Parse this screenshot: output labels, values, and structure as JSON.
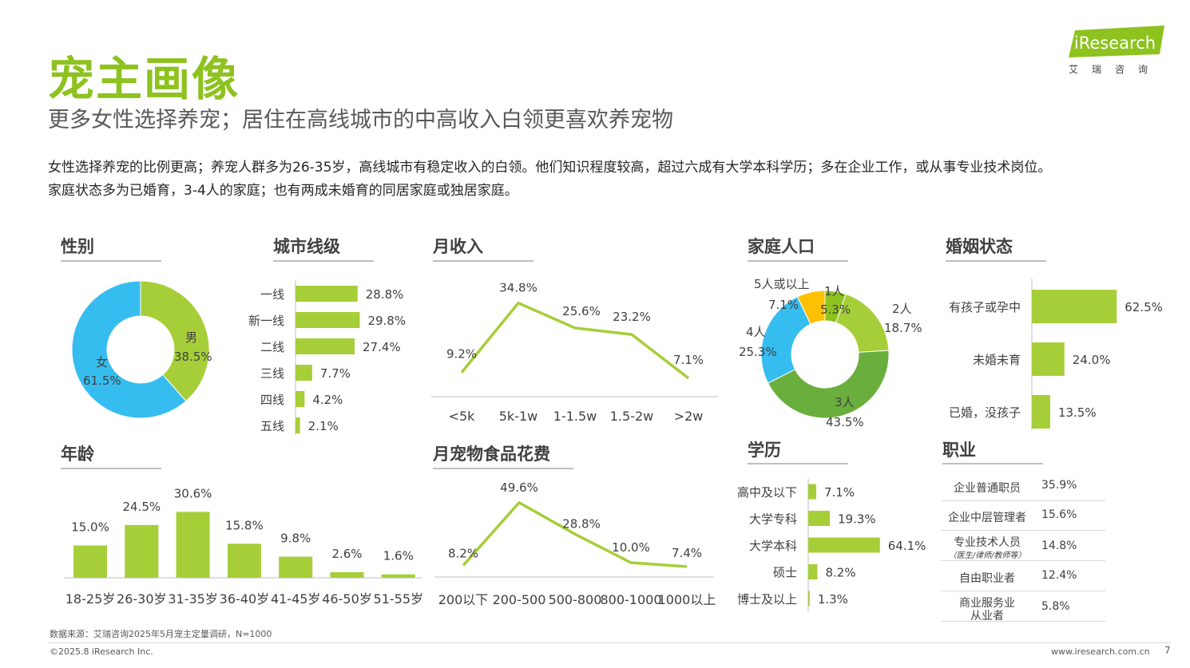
{
  "header": {
    "title": "宠主画像",
    "subtitle": "更多女性选择养宠；居住在高线城市的中高收入白领更喜欢养宠物",
    "desc1": "女性选择养宠的比例更高；养宠人群多为26-35岁，高线城市有稳定收入的白领。他们知识程度较高，超过六成有大学本科学历；多在企业工作，或从事专业技术岗位。",
    "desc2": "家庭状态多为已婚育，3-4人的家庭；也有两成未婚育的同居家庭或独居家庭。"
  },
  "logo": {
    "brand": "iResearch",
    "cn": "艾瑞咨询"
  },
  "colors": {
    "green": "#8DC21F",
    "lightgreen": "#A6CE39",
    "darkgreen": "#6AAE3E",
    "blue": "#36BDEF",
    "yellow": "#FFC000"
  },
  "footer": {
    "source": "数据来源：艾瑞咨询2025年5月宠主定量调研，N=1000",
    "copyright": "©2025.8 iResearch Inc.",
    "url": "www.iresearch.com.cn",
    "page": "7"
  },
  "sections": {
    "gender": "性别",
    "city": "城市线级",
    "income": "月收入",
    "family": "家庭人口",
    "marriage": "婚姻状态",
    "age": "年龄",
    "food": "月宠物食品花费",
    "edu": "学历",
    "job": "职业"
  },
  "chart_data": [
    {
      "id": "gender",
      "type": "pie",
      "donut": true,
      "slices": [
        {
          "label": "男",
          "value": 38.5,
          "text": "38.5%"
        },
        {
          "label": "女",
          "value": 61.5,
          "text": "61.5%"
        }
      ]
    },
    {
      "id": "city",
      "type": "bar",
      "orientation": "horizontal",
      "categories": [
        "一线",
        "新一线",
        "二线",
        "三线",
        "四线",
        "五线"
      ],
      "values": [
        28.8,
        29.8,
        27.4,
        7.7,
        4.2,
        2.1
      ],
      "labels": [
        "28.8%",
        "29.8%",
        "27.4%",
        "7.7%",
        "4.2%",
        "2.1%"
      ]
    },
    {
      "id": "income",
      "type": "line",
      "categories": [
        "<5k",
        "5k-1w",
        "1-1.5w",
        "1.5-2w",
        ">2w"
      ],
      "values": [
        9.2,
        34.8,
        25.6,
        23.2,
        7.1
      ],
      "labels": [
        "9.2%",
        "34.8%",
        "25.6%",
        "23.2%",
        "7.1%"
      ]
    },
    {
      "id": "family",
      "type": "pie",
      "donut": true,
      "slices": [
        {
          "label": "1人",
          "value": 5.3,
          "text": "5.3%"
        },
        {
          "label": "2人",
          "value": 18.7,
          "text": "18.7%"
        },
        {
          "label": "3人",
          "value": 43.5,
          "text": "43.5%"
        },
        {
          "label": "4人",
          "value": 25.3,
          "text": "25.3%"
        },
        {
          "label": "5人或以上",
          "value": 7.1,
          "text": "7.1%"
        }
      ]
    },
    {
      "id": "marriage",
      "type": "bar",
      "orientation": "horizontal",
      "categories": [
        "有孩子或孕中",
        "未婚未育",
        "已婚，没孩子"
      ],
      "values": [
        62.5,
        24.0,
        13.5
      ],
      "labels": [
        "62.5%",
        "24.0%",
        "13.5%"
      ]
    },
    {
      "id": "age",
      "type": "bar",
      "categories": [
        "18-25岁",
        "26-30岁",
        "31-35岁",
        "36-40岁",
        "41-45岁",
        "46-50岁",
        "51-55岁"
      ],
      "values": [
        15.0,
        24.5,
        30.6,
        15.8,
        9.8,
        2.6,
        1.6
      ],
      "labels": [
        "15.0%",
        "24.5%",
        "30.6%",
        "15.8%",
        "9.8%",
        "2.6%",
        "1.6%"
      ]
    },
    {
      "id": "food",
      "type": "line",
      "categories": [
        "200以下",
        "200-500",
        "500-800",
        "800-1000",
        "1000以上"
      ],
      "values": [
        8.2,
        49.6,
        28.8,
        10.0,
        7.4
      ],
      "labels": [
        "8.2%",
        "49.6%",
        "28.8%",
        "10.0%",
        "7.4%"
      ]
    },
    {
      "id": "edu",
      "type": "bar",
      "orientation": "horizontal",
      "categories": [
        "高中及以下",
        "大学专科",
        "大学本科",
        "硕士",
        "博士及以上"
      ],
      "values": [
        7.1,
        19.3,
        64.1,
        8.2,
        1.3
      ],
      "labels": [
        "7.1%",
        "19.3%",
        "64.1%",
        "8.2%",
        "1.3%"
      ]
    },
    {
      "id": "job",
      "type": "table",
      "rows": [
        {
          "name": "企业普通职员",
          "note": "",
          "value": "35.9%"
        },
        {
          "name": "企业中层管理者",
          "note": "",
          "value": "15.6%"
        },
        {
          "name": "专业技术人员",
          "note": "（医生/律师/教师等）",
          "value": "14.8%"
        },
        {
          "name": "自由职业者",
          "note": "",
          "value": "12.4%"
        },
        {
          "name": "商业服务业",
          "note": "从业者",
          "value": "5.8%"
        }
      ]
    }
  ]
}
